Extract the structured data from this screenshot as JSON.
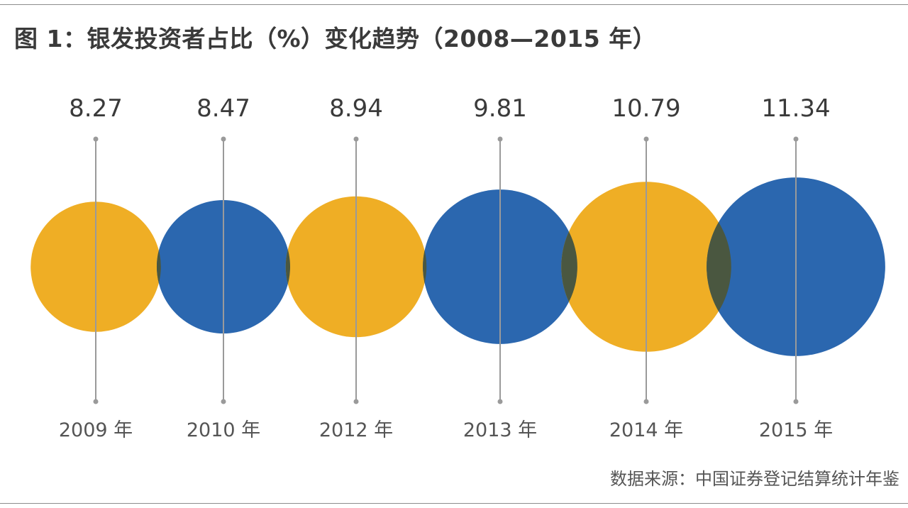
{
  "title": "图 1：银发投资者占比（%）变化趋势（2008—2015 年）",
  "source": "数据来源：中国证券登记结算统计年鉴",
  "colors": {
    "gold": "#EFAE25",
    "blue": "#2B67AF",
    "overlap": "#4A5740",
    "line": "#9a9a9a",
    "text": "#3a3a3a"
  },
  "chart_data": {
    "type": "bubble",
    "title": "图 1：银发投资者占比（%）变化趋势（2008—2015 年）",
    "categories": [
      "2009 年",
      "2010 年",
      "2012 年",
      "2013 年",
      "2014 年",
      "2015 年"
    ],
    "values": [
      8.27,
      8.47,
      8.94,
      9.81,
      10.79,
      11.34
    ],
    "value_labels": [
      "8.27",
      "8.47",
      "8.94",
      "9.81",
      "10.79",
      "11.34"
    ],
    "unit": "%",
    "color_pattern": [
      "gold",
      "blue",
      "gold",
      "blue",
      "gold",
      "blue"
    ]
  }
}
